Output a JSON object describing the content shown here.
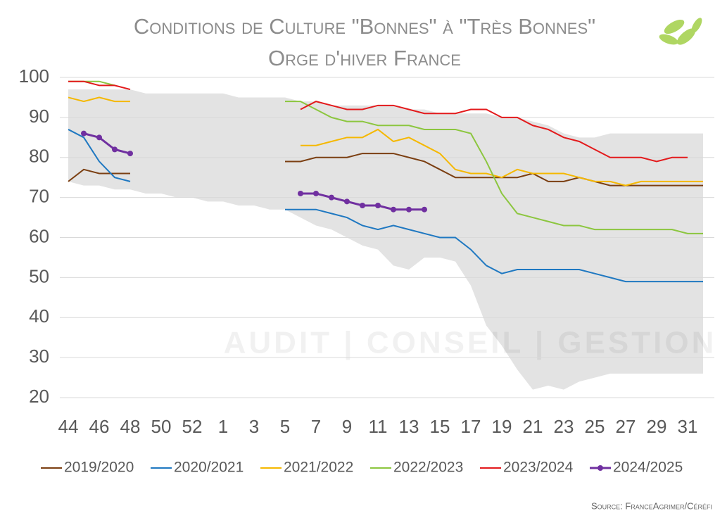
{
  "chart_data": {
    "type": "line",
    "title": "Conditions de Culture \"Bonnes\" à \"Très Bonnes\"",
    "subtitle": "Orge d'hiver France",
    "source": "Source: FranceAgrimer/Céréfi",
    "watermark": "AUDIT | CONSEIL | GESTION",
    "categories": [
      "44",
      null,
      "46",
      null,
      "48",
      null,
      "50",
      null,
      "52",
      null,
      "1",
      null,
      "3",
      null,
      "5",
      null,
      "7",
      null,
      "9",
      null,
      "11",
      null,
      "13",
      null,
      "15",
      null,
      "17",
      null,
      "19",
      null,
      "21",
      null,
      "23",
      null,
      "25",
      null,
      "27",
      null,
      "29",
      null,
      "31",
      null
    ],
    "ylim": [
      20,
      100
    ],
    "yticks": [
      20,
      30,
      40,
      50,
      60,
      70,
      80,
      90,
      100
    ],
    "grid": true,
    "band": {
      "color": "#e3e3e3",
      "upper": [
        97,
        97,
        97,
        97,
        97,
        96,
        96,
        96,
        96,
        96,
        96,
        95,
        95,
        95,
        95,
        94,
        94,
        93,
        93,
        93,
        93,
        93,
        92,
        92,
        91,
        91,
        91,
        91,
        90,
        90,
        89,
        88,
        86,
        85,
        85,
        86,
        86,
        86,
        86,
        86,
        86,
        86
      ],
      "lower": [
        74,
        73,
        73,
        72,
        72,
        71,
        71,
        70,
        70,
        69,
        69,
        68,
        68,
        67,
        67,
        65,
        63,
        62,
        60,
        58,
        57,
        53,
        52,
        55,
        55,
        54,
        48,
        38,
        33,
        27,
        22,
        23,
        22,
        24,
        25,
        26,
        26,
        26,
        26,
        26,
        26,
        26
      ]
    },
    "series": [
      {
        "name": "2019/2020",
        "color": "#7b3f12",
        "values": [
          74,
          77,
          76,
          76,
          76,
          null,
          null,
          null,
          null,
          null,
          null,
          null,
          null,
          null,
          79,
          79,
          80,
          80,
          80,
          81,
          81,
          81,
          80,
          79,
          77,
          75,
          75,
          75,
          75,
          75,
          76,
          74,
          74,
          75,
          74,
          73,
          73,
          73,
          73,
          73,
          73,
          73
        ]
      },
      {
        "name": "2020/2021",
        "color": "#1f78c1",
        "values": [
          87,
          85,
          79,
          75,
          74,
          null,
          null,
          null,
          null,
          null,
          null,
          null,
          null,
          null,
          67,
          67,
          67,
          66,
          65,
          63,
          62,
          63,
          62,
          61,
          60,
          60,
          57,
          53,
          51,
          52,
          52,
          52,
          52,
          52,
          51,
          50,
          49,
          49,
          49,
          49,
          49,
          49
        ]
      },
      {
        "name": "2021/2022",
        "color": "#f5b800",
        "values": [
          95,
          94,
          95,
          94,
          94,
          null,
          null,
          null,
          null,
          null,
          null,
          null,
          null,
          null,
          null,
          83,
          83,
          84,
          85,
          85,
          87,
          84,
          85,
          83,
          81,
          77,
          76,
          76,
          75,
          77,
          76,
          76,
          76,
          75,
          74,
          74,
          73,
          74,
          74,
          74,
          74,
          74
        ]
      },
      {
        "name": "2022/2023",
        "color": "#8cc63f",
        "values": [
          99,
          99,
          99,
          98,
          null,
          null,
          null,
          null,
          null,
          null,
          null,
          null,
          null,
          null,
          94,
          94,
          92,
          90,
          89,
          89,
          88,
          88,
          88,
          87,
          87,
          87,
          86,
          79,
          71,
          66,
          65,
          64,
          63,
          63,
          62,
          62,
          62,
          62,
          62,
          62,
          61,
          61
        ]
      },
      {
        "name": "2023/2024",
        "color": "#e31a1c",
        "values": [
          99,
          99,
          98,
          98,
          97,
          null,
          null,
          null,
          null,
          null,
          null,
          null,
          null,
          null,
          null,
          92,
          94,
          93,
          92,
          92,
          93,
          93,
          92,
          91,
          91,
          91,
          92,
          92,
          90,
          90,
          88,
          87,
          85,
          84,
          82,
          80,
          80,
          80,
          79,
          80,
          80,
          null
        ]
      },
      {
        "name": "2024/2025",
        "color": "#7030a0",
        "markers": true,
        "values": [
          null,
          86,
          85,
          82,
          81,
          null,
          null,
          null,
          null,
          null,
          null,
          null,
          null,
          null,
          null,
          71,
          71,
          70,
          69,
          68,
          68,
          67,
          67,
          67,
          null,
          null,
          null,
          null,
          null,
          null,
          null,
          null,
          null,
          null,
          null,
          null,
          null,
          null,
          null,
          null,
          null,
          null
        ]
      }
    ]
  }
}
